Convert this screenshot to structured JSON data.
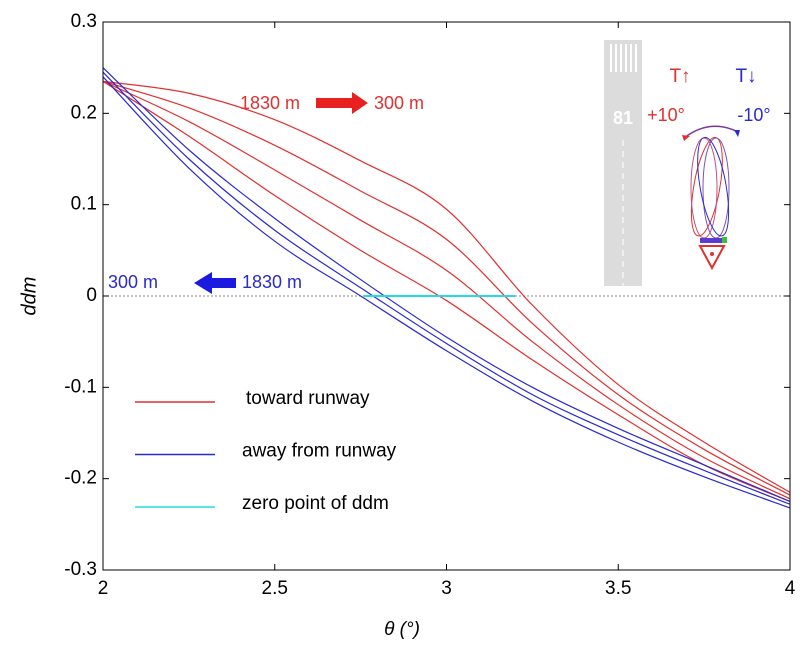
{
  "chart_data": {
    "type": "line",
    "x_label": "θ (°)",
    "y_label": "ddm",
    "xlim": [
      2,
      4
    ],
    "ylim": [
      -0.3,
      0.3
    ],
    "xticks": [
      2,
      2.5,
      3,
      3.5,
      4
    ],
    "yticks": [
      -0.3,
      -0.2,
      -0.1,
      0,
      0.1,
      0.2,
      0.3
    ],
    "x": [
      2,
      2.25,
      2.5,
      2.75,
      3,
      3.25,
      3.5,
      3.75,
      4
    ],
    "series": [
      {
        "name": "toward runway",
        "color": "#e03030",
        "values": [
          [
            0.235,
            0.175,
            0.11,
            0.05,
            -0.005,
            -0.07,
            -0.13,
            -0.185,
            -0.225
          ],
          [
            0.235,
            0.191,
            0.138,
            0.083,
            0.028,
            -0.05,
            -0.119,
            -0.177,
            -0.222
          ],
          [
            0.235,
            0.206,
            0.165,
            0.115,
            0.062,
            -0.03,
            -0.108,
            -0.168,
            -0.218
          ],
          [
            0.235,
            0.222,
            0.193,
            0.148,
            0.095,
            -0.01,
            -0.097,
            -0.16,
            -0.215
          ]
        ]
      },
      {
        "name": "away from runway",
        "color": "#2a2ad0",
        "values": [
          [
            0.25,
            0.16,
            0.085,
            0.018,
            -0.045,
            -0.1,
            -0.145,
            -0.185,
            -0.225
          ],
          [
            0.245,
            0.15,
            0.072,
            0.009,
            -0.052,
            -0.108,
            -0.152,
            -0.191,
            -0.228
          ],
          [
            0.24,
            0.14,
            0.06,
            0.0,
            -0.06,
            -0.115,
            -0.16,
            -0.198,
            -0.232
          ]
        ]
      },
      {
        "name": "zero point of ddm",
        "color": "#22dddd",
        "x": [
          2.76,
          3.2
        ],
        "values": [
          0,
          0
        ]
      }
    ],
    "annotations": {
      "red_from": "1830 m",
      "red_to": "300 m",
      "blue_to": "300 m",
      "blue_from": "1830 m",
      "runway": "81",
      "t_up": "T↑",
      "t_down": "T↓",
      "plus": "+10°",
      "minus": "-10°"
    }
  }
}
